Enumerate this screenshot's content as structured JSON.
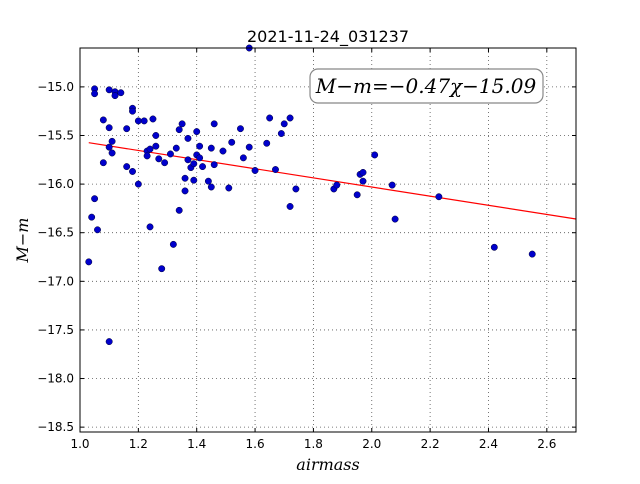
{
  "chart_data": {
    "type": "scatter",
    "title": "2021-11-24_031237",
    "xlabel": "airmass",
    "ylabel": "M−m",
    "xlim": [
      1.0,
      2.7
    ],
    "ylim": [
      -18.55,
      -14.6
    ],
    "grid": true,
    "xticks": [
      1.0,
      1.2,
      1.4,
      1.6,
      1.8,
      2.0,
      2.2,
      2.4,
      2.6
    ],
    "xtick_labels": [
      "1.0",
      "1.2",
      "1.4",
      "1.6",
      "1.8",
      "2.0",
      "2.2",
      "2.4",
      "2.6"
    ],
    "yticks": [
      -15.0,
      -15.5,
      -16.0,
      -16.5,
      -17.0,
      -17.5,
      -18.0,
      -18.5
    ],
    "ytick_labels": [
      "−15.0",
      "−15.5",
      "−16.0",
      "−16.5",
      "−17.0",
      "−17.5",
      "−18.0",
      "−18.5"
    ],
    "annotation": "M−m=−0.47χ−15.09",
    "fit": {
      "slope": -0.47,
      "intercept": -15.09,
      "color": "#ff0000"
    },
    "point_color": "#0000cc",
    "points": [
      [
        1.03,
        -16.8
      ],
      [
        1.04,
        -16.34
      ],
      [
        1.05,
        -16.15
      ],
      [
        1.05,
        -15.02
      ],
      [
        1.05,
        -15.07
      ],
      [
        1.06,
        -16.47
      ],
      [
        1.08,
        -15.78
      ],
      [
        1.08,
        -15.34
      ],
      [
        1.1,
        -15.42
      ],
      [
        1.1,
        -15.62
      ],
      [
        1.1,
        -15.03
      ],
      [
        1.1,
        -17.62
      ],
      [
        1.11,
        -15.68
      ],
      [
        1.11,
        -15.56
      ],
      [
        1.12,
        -15.05
      ],
      [
        1.12,
        -15.09
      ],
      [
        1.14,
        -15.06
      ],
      [
        1.16,
        -15.82
      ],
      [
        1.16,
        -15.43
      ],
      [
        1.18,
        -15.22
      ],
      [
        1.18,
        -15.25
      ],
      [
        1.18,
        -15.87
      ],
      [
        1.2,
        -16.0
      ],
      [
        1.2,
        -15.35
      ],
      [
        1.22,
        -15.35
      ],
      [
        1.23,
        -15.66
      ],
      [
        1.23,
        -15.71
      ],
      [
        1.24,
        -15.64
      ],
      [
        1.24,
        -16.44
      ],
      [
        1.25,
        -15.33
      ],
      [
        1.26,
        -15.61
      ],
      [
        1.26,
        -15.5
      ],
      [
        1.27,
        -15.74
      ],
      [
        1.28,
        -16.87
      ],
      [
        1.29,
        -15.78
      ],
      [
        1.31,
        -15.69
      ],
      [
        1.32,
        -16.62
      ],
      [
        1.33,
        -15.63
      ],
      [
        1.34,
        -15.44
      ],
      [
        1.34,
        -16.27
      ],
      [
        1.35,
        -15.38
      ],
      [
        1.36,
        -15.94
      ],
      [
        1.36,
        -16.07
      ],
      [
        1.37,
        -15.75
      ],
      [
        1.37,
        -15.53
      ],
      [
        1.38,
        -15.83
      ],
      [
        1.39,
        -15.79
      ],
      [
        1.39,
        -15.96
      ],
      [
        1.4,
        -15.46
      ],
      [
        1.4,
        -15.7
      ],
      [
        1.41,
        -15.61
      ],
      [
        1.41,
        -15.73
      ],
      [
        1.42,
        -15.82
      ],
      [
        1.44,
        -15.97
      ],
      [
        1.45,
        -15.63
      ],
      [
        1.45,
        -16.03
      ],
      [
        1.46,
        -15.38
      ],
      [
        1.46,
        -15.8
      ],
      [
        1.49,
        -15.66
      ],
      [
        1.51,
        -16.04
      ],
      [
        1.52,
        -15.57
      ],
      [
        1.55,
        -15.43
      ],
      [
        1.56,
        -15.73
      ],
      [
        1.58,
        -15.62
      ],
      [
        1.58,
        -14.6
      ],
      [
        1.6,
        -15.86
      ],
      [
        1.64,
        -15.58
      ],
      [
        1.65,
        -15.32
      ],
      [
        1.67,
        -15.85
      ],
      [
        1.69,
        -15.48
      ],
      [
        1.7,
        -15.38
      ],
      [
        1.72,
        -15.32
      ],
      [
        1.72,
        -16.23
      ],
      [
        1.74,
        -16.05
      ],
      [
        1.87,
        -16.05
      ],
      [
        1.88,
        -16.01
      ],
      [
        1.95,
        -16.11
      ],
      [
        1.96,
        -15.9
      ],
      [
        1.97,
        -15.88
      ],
      [
        1.97,
        -15.97
      ],
      [
        2.01,
        -15.7
      ],
      [
        2.07,
        -16.01
      ],
      [
        2.08,
        -16.36
      ],
      [
        2.23,
        -16.13
      ],
      [
        2.42,
        -16.65
      ],
      [
        2.55,
        -16.72
      ]
    ]
  }
}
